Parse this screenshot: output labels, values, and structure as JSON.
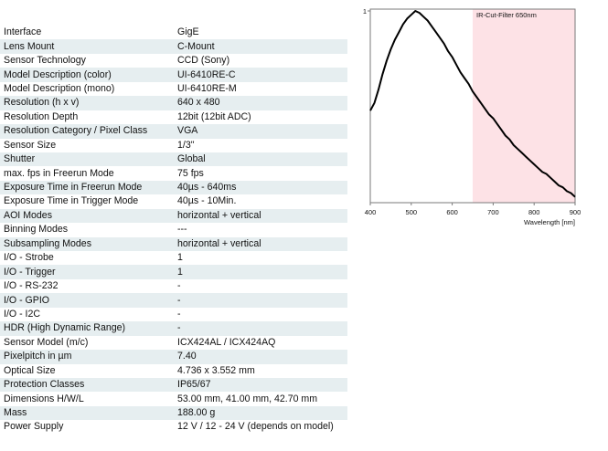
{
  "specs": [
    {
      "label": "Interface",
      "value": "GigE"
    },
    {
      "label": "Lens Mount",
      "value": "C-Mount"
    },
    {
      "label": "Sensor Technology",
      "value": "CCD (Sony)"
    },
    {
      "label": "Model Description (color)",
      "value": "UI-6410RE-C"
    },
    {
      "label": "Model Description (mono)",
      "value": "UI-6410RE-M"
    },
    {
      "label": "Resolution (h x v)",
      "value": "640 x 480"
    },
    {
      "label": "Resolution Depth",
      "value": "12bit (12bit ADC)"
    },
    {
      "label": "Resolution Category / Pixel Class",
      "value": "VGA"
    },
    {
      "label": "Sensor Size",
      "value": "1/3\""
    },
    {
      "label": "Shutter",
      "value": "Global"
    },
    {
      "label": "max. fps in Freerun Mode",
      "value": "75 fps"
    },
    {
      "label": "Exposure Time in Freerun Mode",
      "value": "40µs - 640ms"
    },
    {
      "label": "Exposure Time in Trigger Mode",
      "value": "40µs - 10Min."
    },
    {
      "label": "AOI Modes",
      "value": "horizontal + vertical"
    },
    {
      "label": "Binning Modes",
      "value": "---"
    },
    {
      "label": "Subsampling Modes",
      "value": "horizontal + vertical"
    },
    {
      "label": "I/O - Strobe",
      "value": "1"
    },
    {
      "label": "I/O - Trigger",
      "value": "1"
    },
    {
      "label": "I/O - RS-232",
      "value": "-"
    },
    {
      "label": "I/O - GPIO",
      "value": "-"
    },
    {
      "label": "I/O - I2C",
      "value": "-"
    },
    {
      "label": "HDR (High Dynamic Range)",
      "value": "-"
    },
    {
      "label": "Sensor Model (m/c)",
      "value": "ICX424AL / ICX424AQ"
    },
    {
      "label": "Pixelpitch in µm",
      "value": "7.40"
    },
    {
      "label": "Optical Size",
      "value": "4.736 x 3.552 mm"
    },
    {
      "label": "Protection Classes",
      "value": "IP65/67"
    },
    {
      "label": "Dimensions H/W/L",
      "value": "53.00 mm, 41.00 mm, 42.70 mm"
    },
    {
      "label": "Mass",
      "value": "188.00 g"
    },
    {
      "label": "Power Supply",
      "value": "12 V / 12 - 24 V (depends on model)"
    }
  ],
  "chart_data": {
    "type": "line",
    "title": "",
    "xlabel": "Wavelength [nm]",
    "ylabel": "",
    "xlim": [
      400,
      900
    ],
    "ylim": [
      0,
      1
    ],
    "x_ticks": [
      "400",
      "500",
      "600",
      "700",
      "800",
      "900"
    ],
    "y_ticks": [
      "1"
    ],
    "grid": false,
    "annotations": [
      {
        "text": "IR-Cut-Filter 650nm",
        "x_start": 650,
        "x_end": 900,
        "color": "#fde2e6"
      }
    ],
    "series": [
      {
        "color": "#000000",
        "points": [
          [
            400,
            0.48
          ],
          [
            410,
            0.52
          ],
          [
            420,
            0.59
          ],
          [
            430,
            0.67
          ],
          [
            440,
            0.74
          ],
          [
            450,
            0.8
          ],
          [
            460,
            0.85
          ],
          [
            470,
            0.89
          ],
          [
            480,
            0.93
          ],
          [
            490,
            0.96
          ],
          [
            500,
            0.98
          ],
          [
            510,
            1.0
          ],
          [
            520,
            0.99
          ],
          [
            530,
            0.97
          ],
          [
            540,
            0.95
          ],
          [
            550,
            0.92
          ],
          [
            560,
            0.89
          ],
          [
            570,
            0.86
          ],
          [
            580,
            0.83
          ],
          [
            590,
            0.79
          ],
          [
            600,
            0.76
          ],
          [
            610,
            0.72
          ],
          [
            620,
            0.68
          ],
          [
            630,
            0.65
          ],
          [
            640,
            0.62
          ],
          [
            650,
            0.58
          ],
          [
            660,
            0.55
          ],
          [
            670,
            0.52
          ],
          [
            680,
            0.49
          ],
          [
            690,
            0.46
          ],
          [
            700,
            0.44
          ],
          [
            710,
            0.41
          ],
          [
            720,
            0.38
          ],
          [
            730,
            0.35
          ],
          [
            740,
            0.33
          ],
          [
            750,
            0.3
          ],
          [
            760,
            0.28
          ],
          [
            770,
            0.26
          ],
          [
            780,
            0.24
          ],
          [
            790,
            0.22
          ],
          [
            800,
            0.2
          ],
          [
            810,
            0.18
          ],
          [
            820,
            0.16
          ],
          [
            830,
            0.15
          ],
          [
            840,
            0.13
          ],
          [
            850,
            0.11
          ],
          [
            860,
            0.09
          ],
          [
            870,
            0.08
          ],
          [
            880,
            0.06
          ],
          [
            890,
            0.05
          ],
          [
            900,
            0.03
          ]
        ]
      }
    ]
  }
}
